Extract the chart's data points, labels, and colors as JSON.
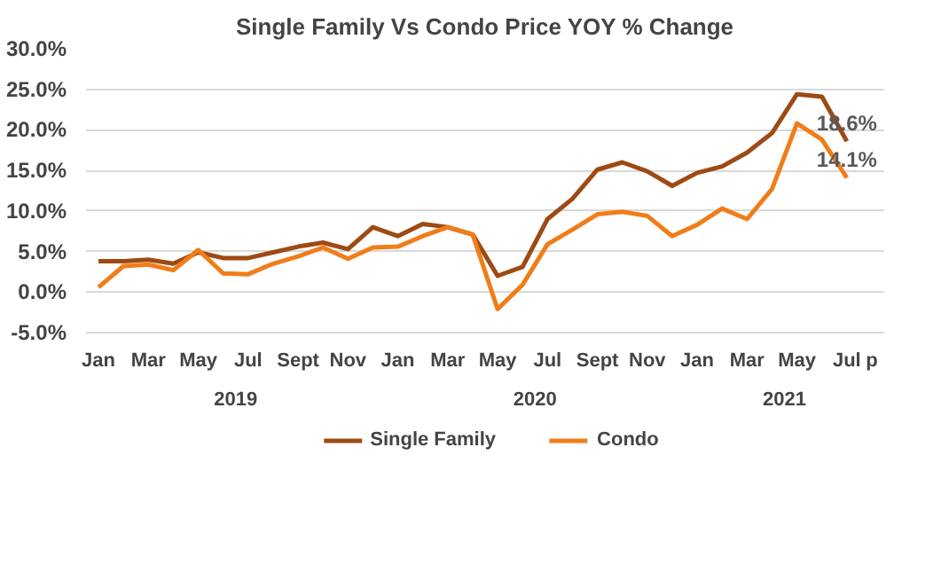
{
  "chart_data": {
    "type": "line",
    "title": "Single Family Vs Condo Price YOY % Change",
    "categories": [
      "Jan",
      null,
      "Mar",
      null,
      "May",
      null,
      "Jul",
      null,
      "Sept",
      null,
      "Nov",
      null,
      "Jan",
      null,
      "Mar",
      null,
      "May",
      null,
      "Jul",
      null,
      "Sept",
      null,
      "Nov",
      null,
      "Jan",
      null,
      "Mar",
      null,
      "May",
      null,
      "Jul",
      "p"
    ],
    "annotations": [
      "2019",
      "2020",
      "2021"
    ],
    "series": [
      {
        "name": "Single Family",
        "color": "#9e4a14",
        "values": [
          3.8,
          3.8,
          4.0,
          3.5,
          4.9,
          4.2,
          4.2,
          4.9,
          5.6,
          6.1,
          5.3,
          8.0,
          6.9,
          8.4,
          8.0,
          7.1,
          2.0,
          3.1,
          9.0,
          11.5,
          15.1,
          16.0,
          14.9,
          13.1,
          14.7,
          15.5,
          17.2,
          19.6,
          24.4,
          24.1,
          18.6,
          null
        ],
        "value_labels": [
          null,
          null,
          null,
          null,
          null,
          null,
          null,
          null,
          null,
          null,
          null,
          null,
          null,
          null,
          null,
          null,
          null,
          null,
          null,
          null,
          null,
          null,
          null,
          null,
          null,
          null,
          null,
          null,
          null,
          null,
          "18.6%",
          null
        ]
      },
      {
        "name": "Condo",
        "color": "#f07d1a",
        "values": [
          0.6,
          3.2,
          3.4,
          2.7,
          5.2,
          2.3,
          2.2,
          3.5,
          4.4,
          5.5,
          4.1,
          5.5,
          5.6,
          6.9,
          8.0,
          7.1,
          -2.1,
          0.9,
          5.9,
          7.7,
          9.6,
          9.9,
          9.4,
          6.9,
          8.3,
          10.3,
          9.0,
          12.7,
          20.8,
          18.8,
          14.1,
          null
        ],
        "value_labels": [
          null,
          null,
          null,
          null,
          null,
          null,
          null,
          null,
          null,
          null,
          null,
          null,
          null,
          null,
          null,
          null,
          null,
          null,
          null,
          null,
          null,
          null,
          null,
          null,
          null,
          null,
          null,
          null,
          null,
          null,
          "14.1%",
          null
        ]
      }
    ],
    "ylim": [
      -5,
      30
    ],
    "yticks": [
      {
        "value": -5,
        "label": "-5.0%"
      },
      {
        "value": 0,
        "label": "0.0%"
      },
      {
        "value": 5,
        "label": "5.0%"
      },
      {
        "value": 10,
        "label": "10.0%"
      },
      {
        "value": 15,
        "label": "15.0%"
      },
      {
        "value": 20,
        "label": "20.0%"
      },
      {
        "value": 25,
        "label": "25.0%"
      },
      {
        "value": 30,
        "label": "30.0%"
      }
    ],
    "grid": "y",
    "legend": "bottom",
    "marker": "none",
    "line_style": "solid"
  }
}
